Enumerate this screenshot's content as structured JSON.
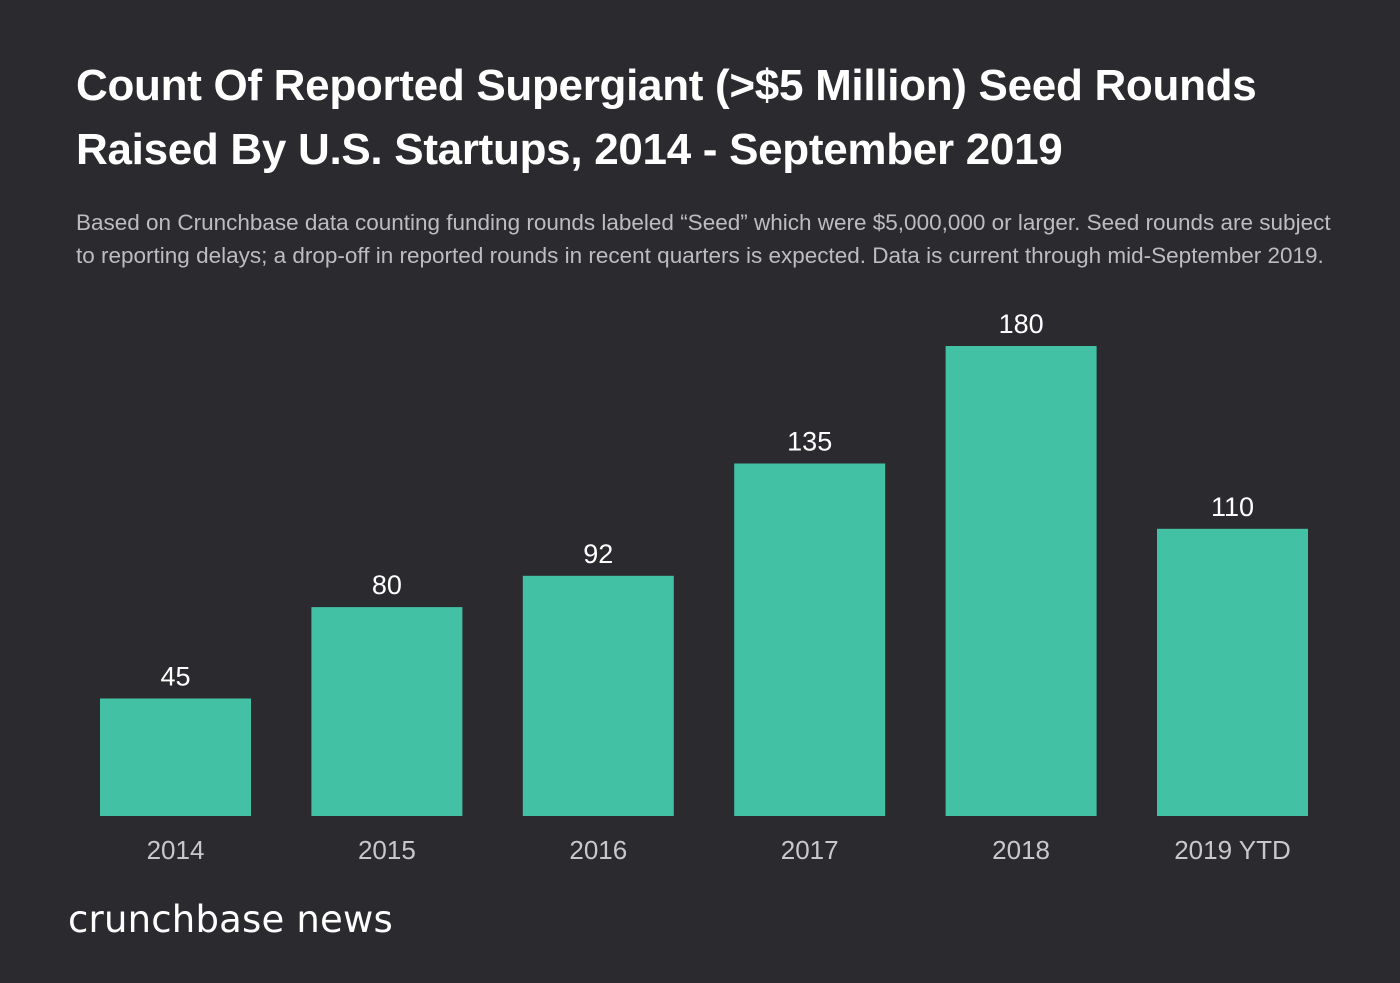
{
  "chart_data": {
    "type": "bar",
    "title": "Count Of Reported Supergiant (>$5 Million) Seed Rounds Raised By U.S. Startups, 2014 - September 2019",
    "subtitle": "Based on Crunchbase data counting funding rounds labeled “Seed” which were $5,000,000 or larger. Seed rounds are subject to reporting delays; a drop-off in reported rounds in recent quarters is expected. Data is current through mid-September 2019.",
    "categories": [
      "2014",
      "2015",
      "2016",
      "2017",
      "2018",
      "2019 YTD"
    ],
    "values": [
      45,
      80,
      92,
      135,
      180,
      110
    ],
    "data_labels": [
      "45",
      "80",
      "92",
      "135",
      "180",
      "110"
    ],
    "ylim": [
      0,
      180
    ],
    "grid": false,
    "legend": "none",
    "colors": {
      "bar": "#43c1a5",
      "background": "#2b2a2e"
    }
  },
  "brand": {
    "name": "crunchbase news"
  }
}
